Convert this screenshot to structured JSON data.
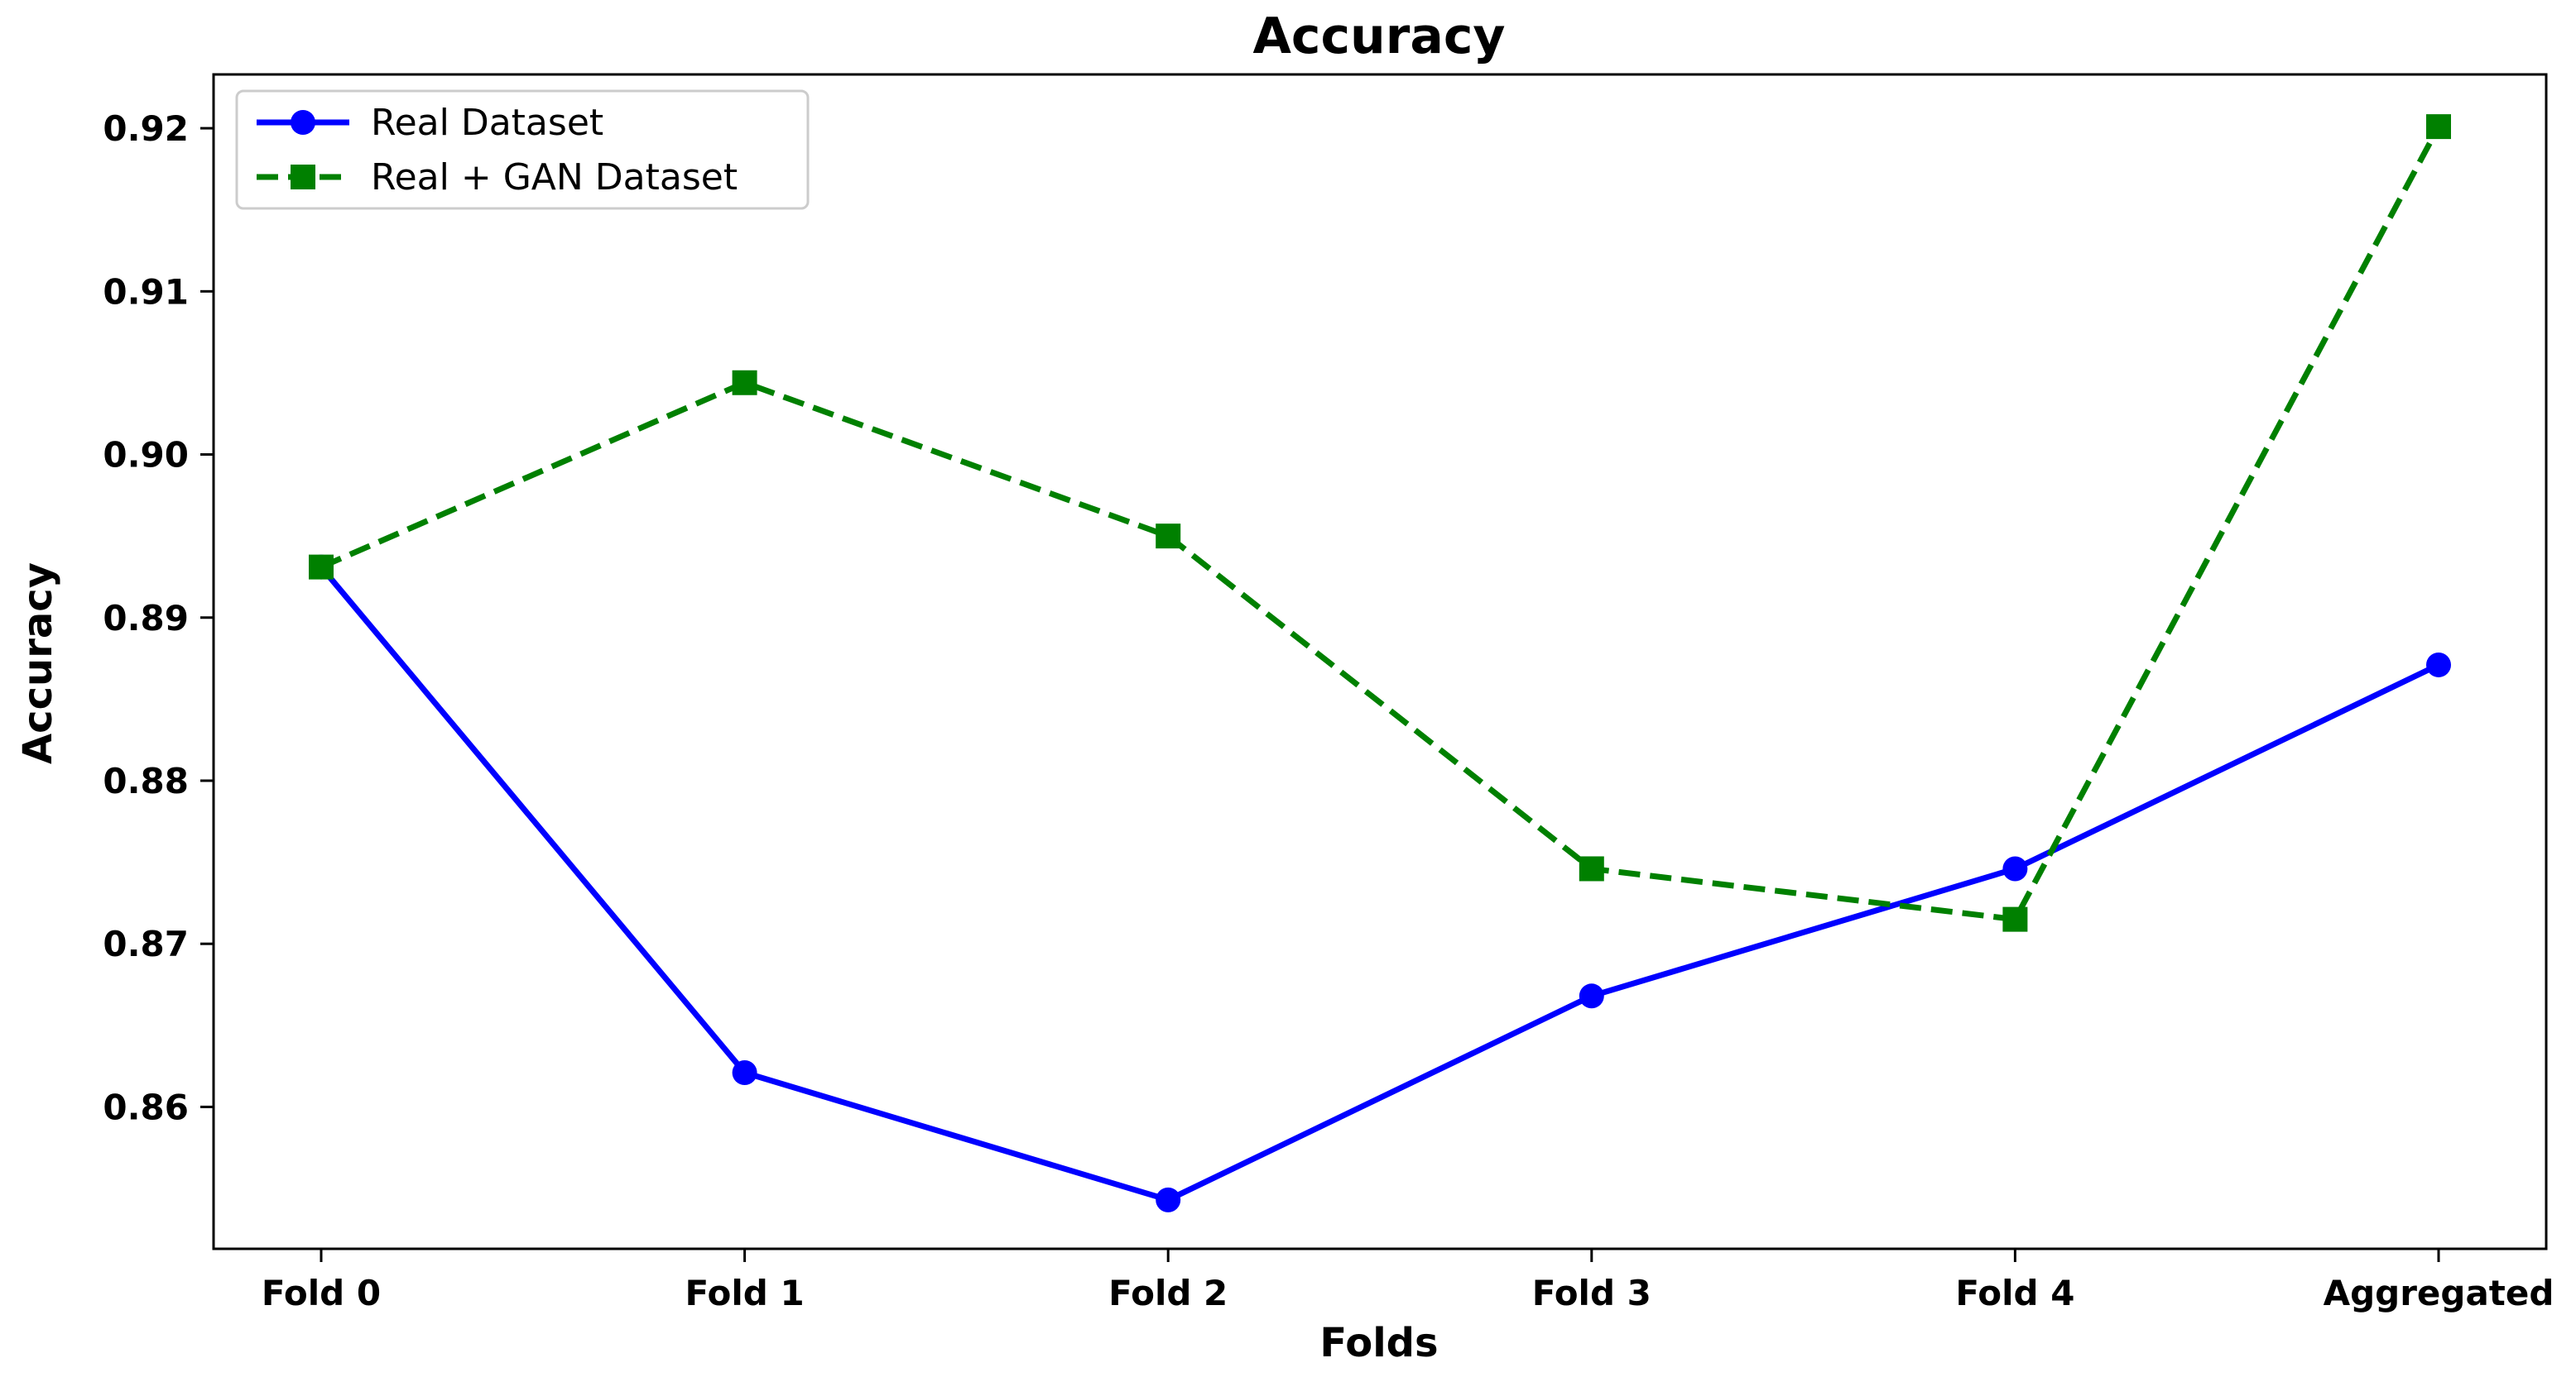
{
  "chart_data": {
    "type": "line",
    "title": "Accuracy",
    "xlabel": "Folds",
    "ylabel": "Accuracy",
    "categories": [
      "Fold 0",
      "Fold 1",
      "Fold 2",
      "Fold 3",
      "Fold 4",
      "Aggregated"
    ],
    "ylim": [
      0.8513,
      0.9233
    ],
    "yticks": [
      0.86,
      0.87,
      0.88,
      0.89,
      0.9,
      0.91,
      0.92
    ],
    "ytick_labels": [
      "0.86",
      "0.87",
      "0.88",
      "0.89",
      "0.90",
      "0.91",
      "0.92"
    ],
    "grid": false,
    "legend_position": "upper-left",
    "series": [
      {
        "name": "Real Dataset",
        "color": "#0000ff",
        "line_style": "solid",
        "marker": "circle",
        "values": [
          0.8931,
          0.8621,
          0.8543,
          0.8668,
          0.8746,
          0.8871
        ]
      },
      {
        "name": "Real + GAN Dataset",
        "color": "#008000",
        "line_style": "dashed",
        "marker": "square",
        "values": [
          0.8931,
          0.9044,
          0.895,
          0.8746,
          0.8715,
          0.9201
        ]
      }
    ]
  }
}
